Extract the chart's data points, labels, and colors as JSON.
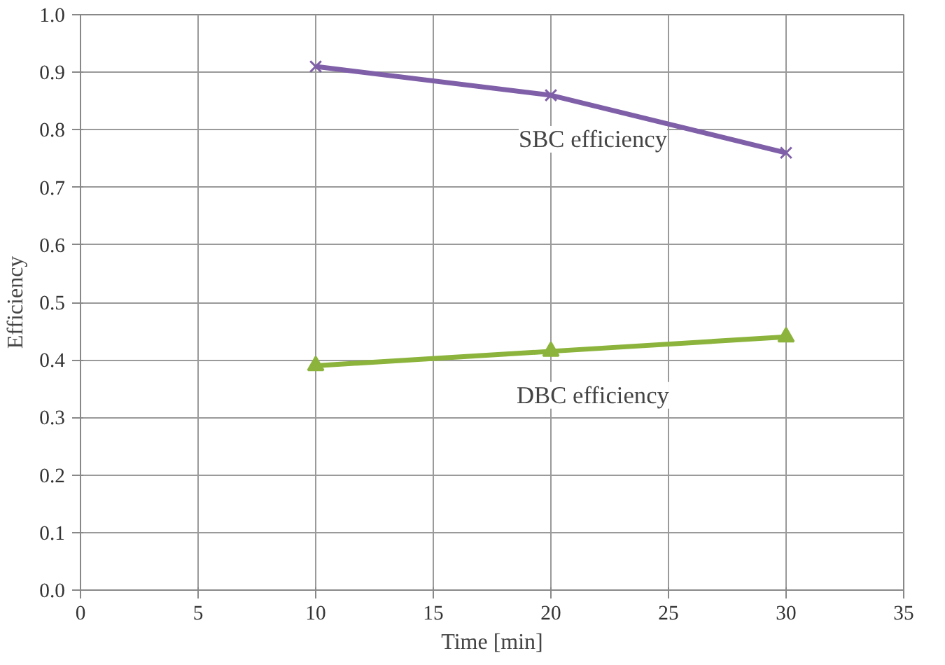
{
  "chart_data": {
    "type": "line",
    "xlabel": "Time [min]",
    "ylabel": "Efficiency",
    "xlim": [
      0,
      35
    ],
    "xticks": [
      0,
      5,
      10,
      15,
      20,
      25,
      30,
      35
    ],
    "ylim": [
      0,
      1
    ],
    "yticks": [
      {
        "value": 0,
        "label": "0.0"
      },
      {
        "value": 0.1,
        "label": "0.1"
      },
      {
        "value": 0.2,
        "label": "0.2"
      },
      {
        "value": 0.3,
        "label": "0.3"
      },
      {
        "value": 0.4,
        "label": "0.4"
      },
      {
        "value": 0.5,
        "label": "0.5"
      },
      {
        "value": 0.6,
        "label": "0.6"
      },
      {
        "value": 0.7,
        "label": "0.7"
      },
      {
        "value": 0.8,
        "label": "0.8"
      },
      {
        "value": 0.9,
        "label": "0.9"
      },
      {
        "value": 1,
        "label": "1.0"
      }
    ],
    "grid": true,
    "series": [
      {
        "name": "SBC efficiency",
        "color": "#7f5fa8",
        "marker": "cross",
        "x": [
          10,
          20,
          30
        ],
        "values": [
          0.91,
          0.86,
          0.76
        ]
      },
      {
        "name": "DBC efficiency",
        "color": "#8cb43c",
        "marker": "triangle",
        "x": [
          10,
          20,
          30
        ],
        "values": [
          0.39,
          0.415,
          0.44
        ]
      }
    ]
  }
}
